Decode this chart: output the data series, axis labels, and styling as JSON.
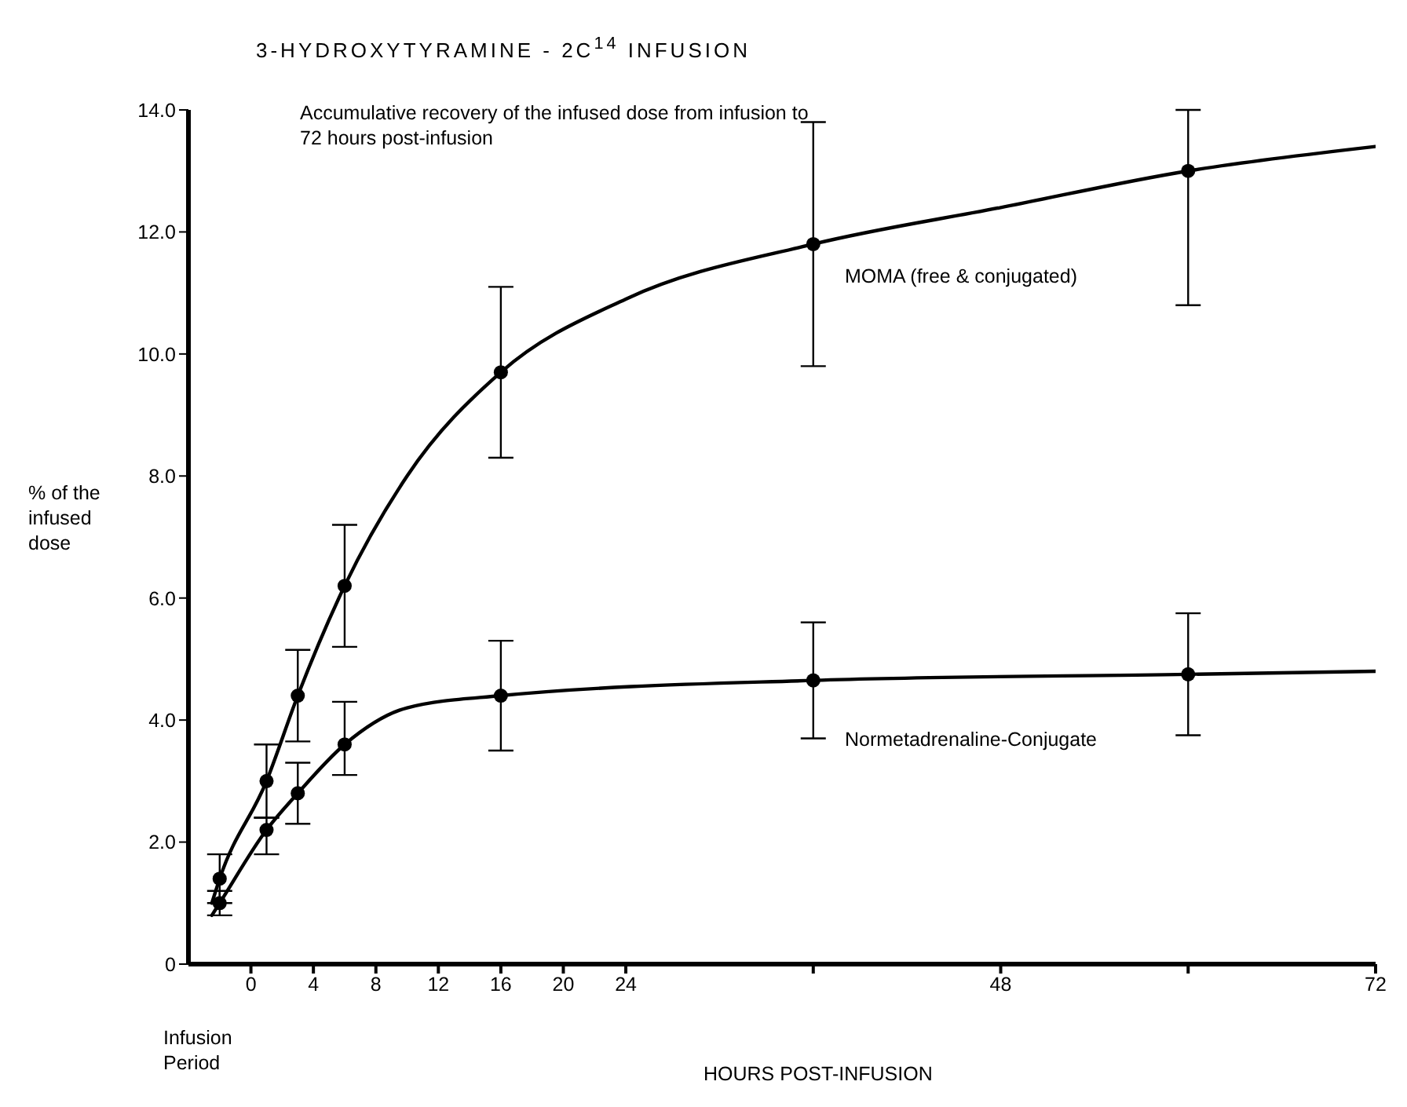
{
  "chart_data": {
    "type": "scatter",
    "title": "3-HYDROXYTYRAMINE - 2C$^{14}$ INFUSION",
    "xlabel": "HOURS POST-INFUSION",
    "ylabel": "% of the infused dose",
    "annotations": [
      "Accumulative recovery of the infused dose from infusion to 72 hours post-infusion",
      "Infusion Period"
    ],
    "xlim": [
      -4,
      72
    ],
    "xticks": [
      0,
      4,
      8,
      12,
      16,
      20,
      24,
      {
        "value": 36,
        "label": null
      },
      48,
      {
        "value": 60,
        "label": null
      },
      72
    ],
    "ylim": [
      0,
      14
    ],
    "yticks": [
      0,
      {
        "value": 2,
        "label": "2.0"
      },
      {
        "value": 4,
        "label": "4.0"
      },
      {
        "value": 6,
        "label": "6.0"
      },
      {
        "value": 8,
        "label": "8.0"
      },
      {
        "value": 10,
        "label": "10.0"
      },
      {
        "value": 12,
        "label": "12.0"
      },
      {
        "value": 14,
        "label": "14.0"
      }
    ],
    "marker": "circle",
    "series": [
      {
        "name": "MOMA (free & conjugated)",
        "color": "#000000",
        "x": [
          -2,
          1,
          3,
          6,
          16,
          36,
          60
        ],
        "values": [
          1.4,
          3.0,
          4.4,
          6.2,
          9.7,
          11.8,
          13.0
        ],
        "errors": [
          0.4,
          0.6,
          0.75,
          1.0,
          1.4,
          2.0,
          [
            10.8,
            14.0
          ]
        ]
      },
      {
        "name": "Normetadrenaline-Conjugate",
        "color": "#000000",
        "x": [
          -2,
          1,
          3,
          6,
          16,
          36,
          60
        ],
        "values": [
          1.0,
          2.2,
          2.8,
          3.6,
          4.4,
          4.65,
          4.75
        ],
        "errors": [
          0.2,
          [
            1.8,
            2.4
          ],
          0.5,
          [
            3.1,
            4.3
          ],
          0.9,
          0.95,
          1.0
        ]
      },
      {
        "type": "line",
        "color": "#000000",
        "line_style": "solid",
        "marker": "none",
        "x": [
          -2.5,
          -2,
          1,
          3,
          6,
          10,
          16,
          24,
          36,
          48,
          60,
          72
        ],
        "values": [
          1.0,
          1.4,
          3.0,
          4.4,
          6.2,
          8.0,
          9.7,
          10.9,
          11.8,
          12.4,
          13.0,
          13.4
        ]
      },
      {
        "type": "line",
        "color": "#000000",
        "line_style": "solid",
        "marker": "none",
        "x": [
          -2.5,
          -2,
          1,
          3,
          6,
          10,
          16,
          36,
          60,
          72
        ],
        "values": [
          0.8,
          1.0,
          2.2,
          2.8,
          3.6,
          4.2,
          4.4,
          4.65,
          4.75,
          4.8
        ]
      }
    ]
  }
}
